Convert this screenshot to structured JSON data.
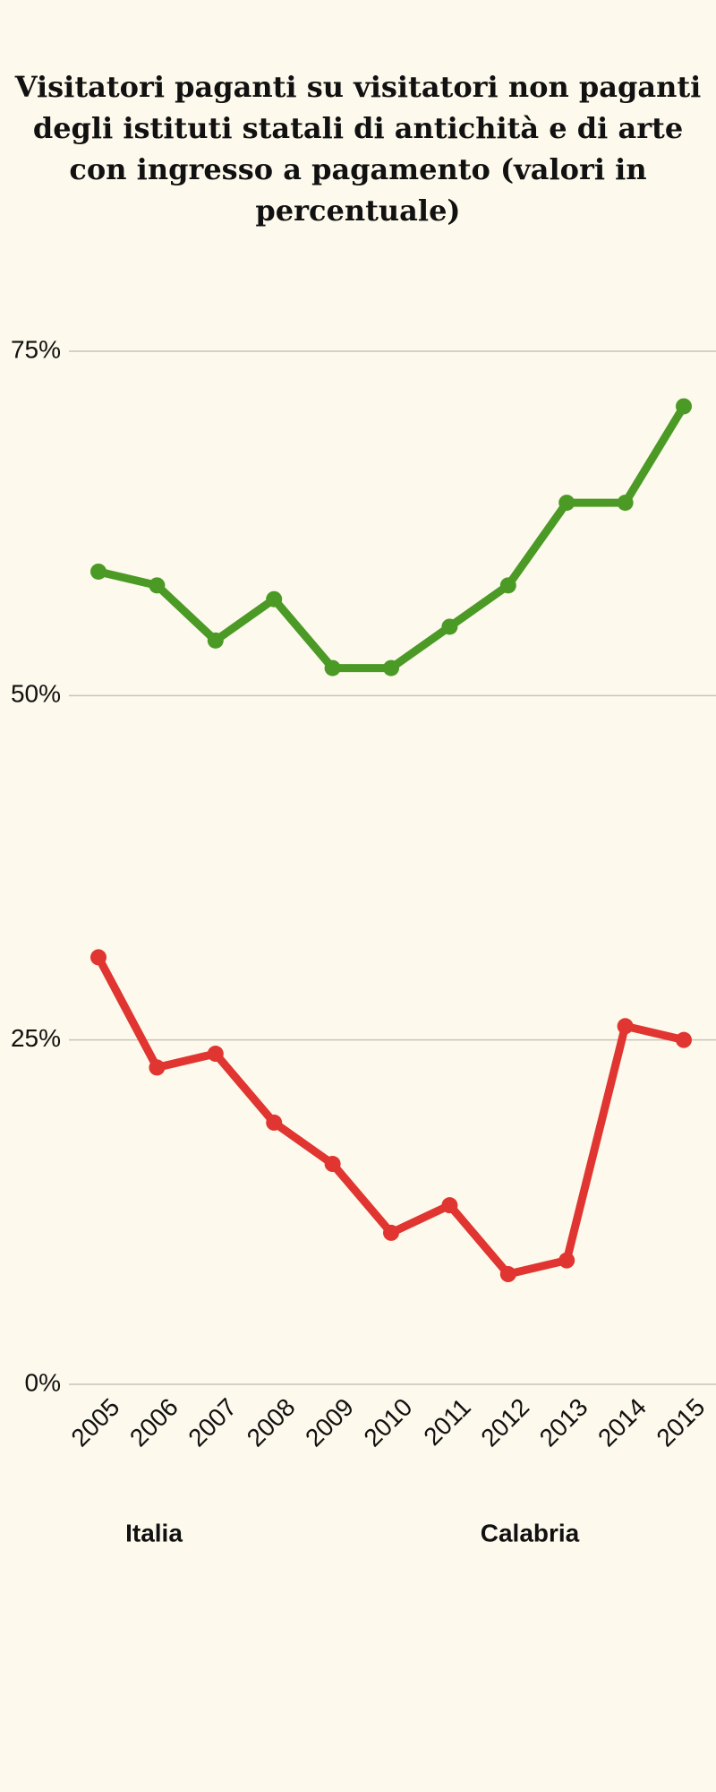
{
  "chart_data": {
    "type": "line",
    "title": "Visitatori paganti su visitatori non paganti degli istituti statali di antichità e di arte con ingresso a pagamento (valori in percentuale)",
    "categories": [
      "2005",
      "2006",
      "2007",
      "2008",
      "2009",
      "2010",
      "2011",
      "2012",
      "2013",
      "2014",
      "2015"
    ],
    "series": [
      {
        "name": "Italia",
        "color": "#4a9a25",
        "values": [
          59,
          58,
          54,
          57,
          52,
          52,
          55,
          58,
          64,
          64,
          71
        ]
      },
      {
        "name": "Calabria",
        "color": "#e03530",
        "values": [
          31,
          23,
          24,
          19,
          16,
          11,
          13,
          8,
          9,
          26,
          25
        ]
      }
    ],
    "ylim": [
      0,
      75
    ],
    "yticks": [
      {
        "value": 0,
        "label": "0%"
      },
      {
        "value": 25,
        "label": "25%"
      },
      {
        "value": 50,
        "label": "50%"
      },
      {
        "value": 75,
        "label": "75%"
      }
    ],
    "grid": true
  }
}
